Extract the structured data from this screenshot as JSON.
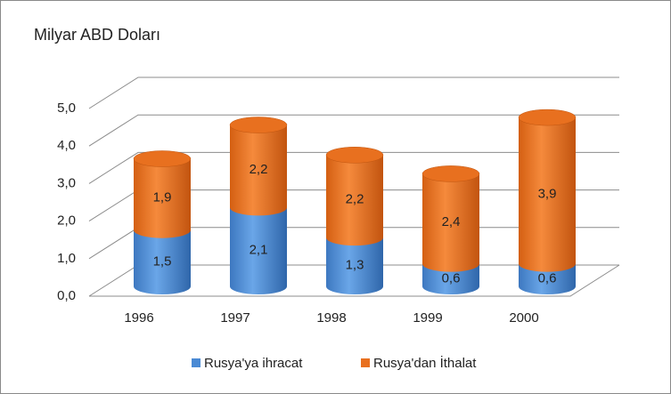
{
  "chart_data": {
    "type": "bar3d_stacked_cylinder",
    "title": "Milyar ABD Doları",
    "categories": [
      "1996",
      "1997",
      "1998",
      "1999",
      "2000"
    ],
    "series": [
      {
        "name": "Rusya'ya ihracat",
        "color": "#4a8ad4",
        "values": [
          1.5,
          2.1,
          1.3,
          0.6,
          0.6
        ],
        "value_labels": [
          "1,5",
          "2,1",
          "1,3",
          "0,6",
          "0,6"
        ]
      },
      {
        "name": "Rusya'dan İthalat",
        "color": "#e8701f",
        "values": [
          1.9,
          2.2,
          2.2,
          2.4,
          3.9
        ],
        "value_labels": [
          "1,9",
          "2,2",
          "2,2",
          "2,4",
          "3,9"
        ]
      }
    ],
    "ylim": [
      0,
      5
    ],
    "yticks": [
      {
        "value": 0,
        "label": "0,0"
      },
      {
        "value": 1,
        "label": "1,0"
      },
      {
        "value": 2,
        "label": "2,0"
      },
      {
        "value": 3,
        "label": "3,0"
      },
      {
        "value": 4,
        "label": "4,0"
      },
      {
        "value": 5,
        "label": "5,0"
      }
    ],
    "grid": true,
    "legend": "bottom"
  }
}
